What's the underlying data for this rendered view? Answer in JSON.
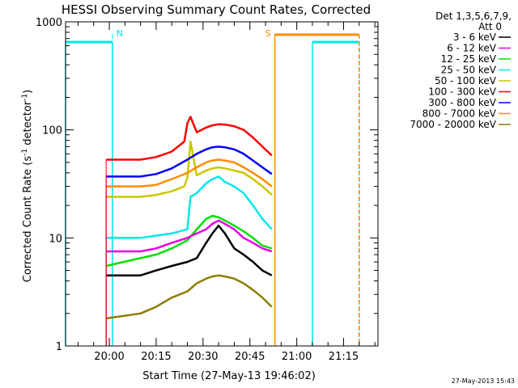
{
  "chart_data": {
    "type": "line",
    "title": "HESSI Observing Summary Count Rates, Corrected",
    "xlabel": "Start Time (27-May-13 19:46:02)",
    "ylabel": "Corrected Count Rate (s",
    "ylabel_sup1": "-1",
    "ylabel_mid": " detector",
    "ylabel_sup2": "-1",
    "ylabel_end": ")",
    "y_scale": "log",
    "ylim": [
      1,
      1000
    ],
    "y_ticks": [
      {
        "value": 1,
        "label": "1"
      },
      {
        "value": 10,
        "label": "10"
      },
      {
        "value": 100,
        "label": "100"
      },
      {
        "value": 1000,
        "label": "1000"
      }
    ],
    "xlim": [
      "19:46",
      "21:26"
    ],
    "x_ticks": [
      {
        "value": "20:00",
        "label": "20:00"
      },
      {
        "value": "20:15",
        "label": "20:15"
      },
      {
        "value": "20:30",
        "label": "20:30"
      },
      {
        "value": "20:45",
        "label": "20:45"
      },
      {
        "value": "21:00",
        "label": "21:00"
      },
      {
        "value": "21:15",
        "label": "21:15"
      }
    ],
    "legend": {
      "placement": "right",
      "header": [
        "Det 1,3,5,6,7,9,",
        "Att 0"
      ]
    },
    "series": [
      {
        "name": "3 - 6 keV",
        "color": "#000000",
        "times": [
          "19:59",
          "20:10",
          "20:15",
          "20:20",
          "20:25",
          "20:28",
          "20:31",
          "20:33",
          "20:35",
          "20:37",
          "20:40",
          "20:43",
          "20:46",
          "20:49",
          "20:52"
        ],
        "values": [
          4.5,
          4.5,
          5.0,
          5.5,
          6.0,
          6.5,
          9,
          11,
          13,
          11,
          8,
          7,
          6,
          5,
          4.5
        ]
      },
      {
        "name": "6 - 12 keV",
        "color": "#e800e8",
        "times": [
          "19:59",
          "20:10",
          "20:15",
          "20:20",
          "20:25",
          "20:28",
          "20:31",
          "20:33",
          "20:35",
          "20:37",
          "20:40",
          "20:43",
          "20:46",
          "20:49",
          "20:52"
        ],
        "values": [
          7.5,
          7.5,
          8,
          9,
          10,
          11,
          12,
          13.5,
          14.5,
          13.5,
          12,
          10,
          9,
          8,
          7.5
        ]
      },
      {
        "name": "12 - 25 keV",
        "color": "#00e000",
        "times": [
          "19:59",
          "20:10",
          "20:15",
          "20:20",
          "20:25",
          "20:28",
          "20:31",
          "20:33",
          "20:35",
          "20:37",
          "20:40",
          "20:43",
          "20:46",
          "20:49",
          "20:52"
        ],
        "values": [
          5.5,
          6.5,
          7,
          8,
          9.5,
          12,
          15,
          16,
          15.5,
          14.5,
          13,
          11.5,
          10,
          8.5,
          8
        ]
      },
      {
        "name": "25 - 50 keV",
        "color": "#00e8e8",
        "times": [
          "19:59",
          "20:10",
          "20:15",
          "20:20",
          "20:25",
          "20:26",
          "20:28",
          "20:31",
          "20:33",
          "20:35",
          "20:37",
          "20:40",
          "20:43",
          "20:46",
          "20:49",
          "20:52"
        ],
        "values": [
          10,
          10,
          10.5,
          11,
          12,
          24,
          26,
          32,
          35,
          37,
          33,
          30,
          26,
          20,
          15,
          12
        ]
      },
      {
        "name": "50 - 100 keV",
        "color": "#c8c800",
        "times": [
          "19:59",
          "20:10",
          "20:15",
          "20:20",
          "20:24",
          "20:25",
          "20:26",
          "20:28",
          "20:31",
          "20:33",
          "20:35",
          "20:37",
          "20:40",
          "20:43",
          "20:46",
          "20:49",
          "20:52"
        ],
        "values": [
          24,
          24,
          25,
          27,
          30,
          36,
          78,
          38,
          42,
          44,
          45,
          44,
          42,
          40,
          35,
          30,
          25
        ]
      },
      {
        "name": "100 - 300 keV",
        "color": "#ff0000",
        "times": [
          "19:59",
          "20:10",
          "20:15",
          "20:20",
          "20:24",
          "20:25",
          "20:26",
          "20:28",
          "20:31",
          "20:33",
          "20:35",
          "20:37",
          "20:40",
          "20:43",
          "20:46",
          "20:49",
          "20:52"
        ],
        "values": [
          53,
          53,
          56,
          63,
          78,
          115,
          132,
          95,
          105,
          110,
          113,
          112,
          108,
          100,
          85,
          70,
          58
        ]
      },
      {
        "name": "300 - 800 keV",
        "color": "#0000ff",
        "times": [
          "19:59",
          "20:10",
          "20:15",
          "20:20",
          "20:25",
          "20:28",
          "20:31",
          "20:33",
          "20:35",
          "20:37",
          "20:40",
          "20:43",
          "20:46",
          "20:49",
          "20:52"
        ],
        "values": [
          37,
          37,
          39,
          44,
          53,
          60,
          66,
          69,
          70,
          69,
          66,
          60,
          52,
          45,
          39
        ]
      },
      {
        "name": "800 - 7000 keV",
        "color": "#ff8c00",
        "times": [
          "19:59",
          "20:10",
          "20:15",
          "20:20",
          "20:25",
          "20:28",
          "20:31",
          "20:33",
          "20:35",
          "20:37",
          "20:40",
          "20:43",
          "20:46",
          "20:49",
          "20:52"
        ],
        "values": [
          30,
          30,
          31,
          35,
          40,
          45,
          50,
          52,
          53,
          52,
          50,
          45,
          40,
          35,
          30
        ]
      },
      {
        "name": "7000 - 20000 keV",
        "color": "#8b7d00",
        "times": [
          "19:59",
          "20:10",
          "20:15",
          "20:20",
          "20:25",
          "20:28",
          "20:31",
          "20:33",
          "20:35",
          "20:37",
          "20:40",
          "20:43",
          "20:46",
          "20:49",
          "20:52"
        ],
        "values": [
          1.8,
          2.0,
          2.3,
          2.8,
          3.2,
          3.8,
          4.2,
          4.4,
          4.5,
          4.4,
          4.2,
          3.8,
          3.3,
          2.8,
          2.3
        ]
      }
    ],
    "annotations": [
      {
        "text": "N",
        "color": "#00e8e8",
        "time": "20:01"
      },
      {
        "text": "S",
        "color": "#ff8c00",
        "time": "20:53"
      }
    ],
    "attenuator_state_lines": [
      {
        "color": "#00e8e8",
        "level": 650,
        "from": "19:46",
        "to": "20:01"
      },
      {
        "color": "#00e8e8",
        "level": 650,
        "from": "21:05",
        "to": "21:20"
      },
      {
        "color": "#ff8c00",
        "level": 760,
        "from": "20:53",
        "to": "21:20"
      }
    ],
    "grid": false
  },
  "timestamp": "27-May-2013 15:43"
}
